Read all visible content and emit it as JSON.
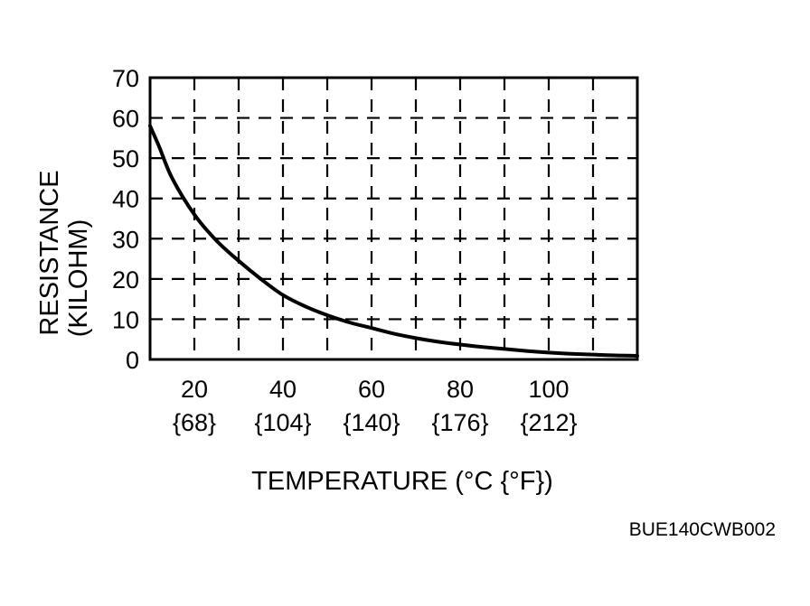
{
  "chart_data": {
    "type": "line",
    "xlabel": "TEMPERATURE (°C {°F})",
    "ylabel_line1": "RESISTANCE",
    "ylabel_line2": "(KILOHM)",
    "xlim": [
      10,
      120
    ],
    "ylim": [
      0,
      70
    ],
    "grid": true,
    "grid_style": "dashed",
    "x_gridlines": [
      20,
      30,
      40,
      50,
      60,
      70,
      80,
      90,
      100,
      110
    ],
    "y_ticks": [
      0,
      10,
      20,
      30,
      40,
      50,
      60,
      70
    ],
    "y_tick_labels": [
      "0",
      "10",
      "20",
      "30",
      "40",
      "50",
      "60",
      "70"
    ],
    "x_ticks": [
      20,
      40,
      60,
      80,
      100
    ],
    "x_tick_labels": [
      "20",
      "40",
      "60",
      "80",
      "100"
    ],
    "x_tick_labels_f": [
      "{68}",
      "{104}",
      "{140}",
      "{176}",
      "{212}"
    ],
    "series": [
      {
        "color": "#000000",
        "x": [
          10,
          12,
          15,
          20,
          25,
          30,
          35,
          40,
          45,
          50,
          55,
          60,
          65,
          70,
          75,
          80,
          85,
          90,
          95,
          100,
          105,
          110,
          115,
          120
        ],
        "y": [
          58,
          53,
          45,
          36,
          29.5,
          24.5,
          20,
          16,
          13.2,
          11,
          9.2,
          7.8,
          6.4,
          5.3,
          4.4,
          3.7,
          3.1,
          2.6,
          2.1,
          1.7,
          1.4,
          1.2,
          1.0,
          0.9
        ]
      }
    ]
  },
  "figure_code": "BUE140CWB002"
}
